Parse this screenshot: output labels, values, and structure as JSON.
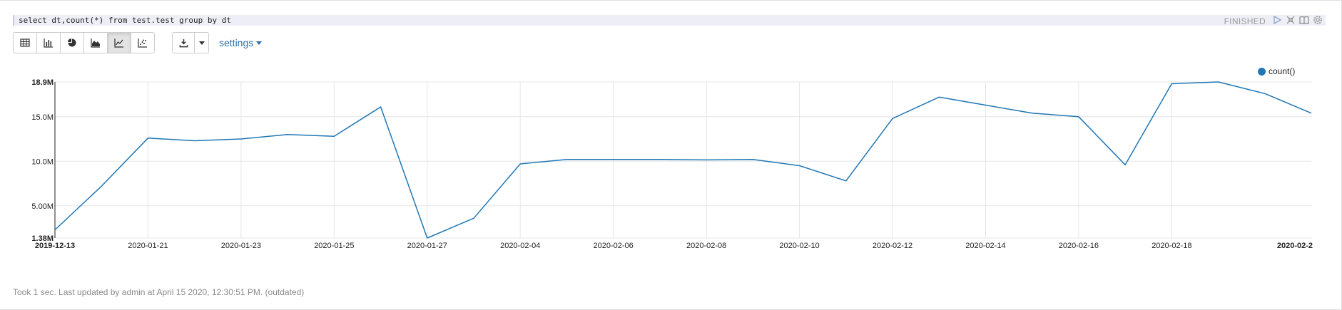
{
  "editor": {
    "query": "select dt,count(*) from test.test group by dt"
  },
  "status": {
    "label": "FINISHED"
  },
  "controls": [
    {
      "name": "run-icon"
    },
    {
      "name": "hide-editor-icon"
    },
    {
      "name": "book-icon"
    },
    {
      "name": "gear-icon"
    }
  ],
  "toolbar": {
    "views": [
      {
        "name": "table-view-button",
        "icon": "table-icon",
        "active": false
      },
      {
        "name": "bar-chart-button",
        "icon": "bar-chart-icon",
        "active": false
      },
      {
        "name": "pie-chart-button",
        "icon": "pie-chart-icon",
        "active": false
      },
      {
        "name": "area-chart-button",
        "icon": "area-chart-icon",
        "active": false
      },
      {
        "name": "line-chart-button",
        "icon": "line-chart-icon",
        "active": true
      },
      {
        "name": "scatter-chart-button",
        "icon": "scatter-chart-icon",
        "active": false
      }
    ],
    "settings_label": "settings"
  },
  "chart_data": {
    "type": "line",
    "series": [
      {
        "name": "count()",
        "color": "#1f77b4",
        "values": [
          2300000,
          7200000,
          12600000,
          12300000,
          12500000,
          13000000,
          12800000,
          16100000,
          1380000,
          3600000,
          9700000,
          10200000,
          10200000,
          10200000,
          10150000,
          10200000,
          9500000,
          7800000,
          14800000,
          17200000,
          16300000,
          15400000,
          15000000,
          9600000,
          18700000,
          18900000,
          17600000,
          15400000
        ]
      }
    ],
    "x_tick_labels": [
      "2019-12-13",
      "2020-01-21",
      "2020-01-23",
      "2020-01-25",
      "2020-01-27",
      "2020-02-04",
      "2020-02-06",
      "2020-02-08",
      "2020-02-10",
      "2020-02-12",
      "2020-02-14",
      "2020-02-16",
      "2020-02-18",
      "2020-02-2"
    ],
    "x_tick_positions": [
      0,
      2,
      4,
      6,
      8,
      10,
      12,
      14,
      16,
      18,
      20,
      22,
      24,
      27
    ],
    "x_tick_bold": [
      true,
      false,
      false,
      false,
      false,
      false,
      false,
      false,
      false,
      false,
      false,
      false,
      false,
      true
    ],
    "y_ticks": [
      {
        "value": 1380000,
        "label": "1.38M",
        "bold": true
      },
      {
        "value": 5000000,
        "label": "5.00M",
        "bold": false
      },
      {
        "value": 10000000,
        "label": "10.0M",
        "bold": false
      },
      {
        "value": 15000000,
        "label": "15.0M",
        "bold": false
      },
      {
        "value": 18900000,
        "label": "18.9M",
        "bold": true
      }
    ],
    "ylim": [
      1380000,
      18900000
    ],
    "grid": true,
    "legend_position": "top-right"
  },
  "footer": {
    "text": "Took 1 sec. Last updated by admin at April 15 2020, 12:30:51 PM. (outdated)"
  }
}
